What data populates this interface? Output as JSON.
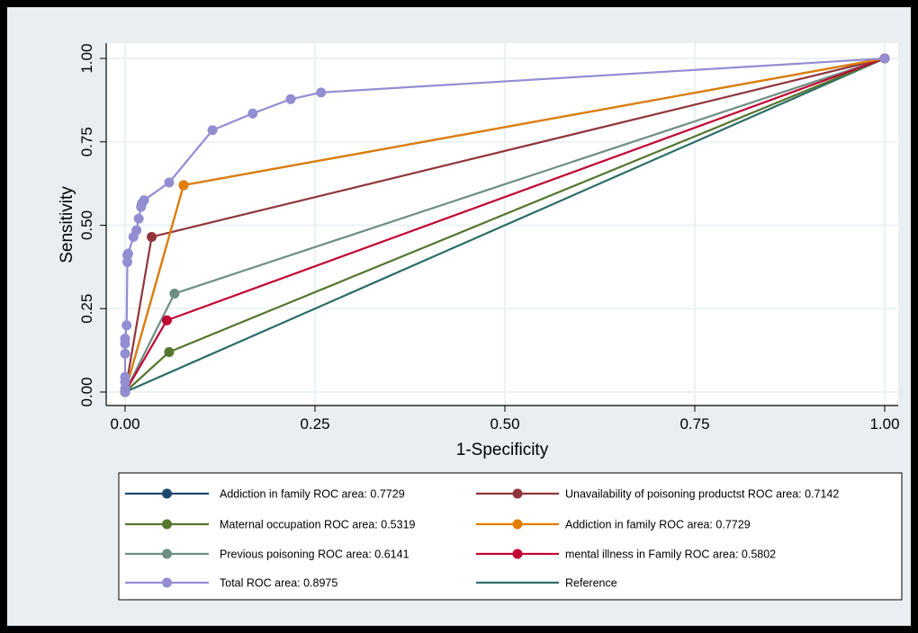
{
  "chart_data": {
    "type": "line",
    "xlabel": "1-Specificity",
    "ylabel": "Sensitivity",
    "xlim": [
      0,
      1
    ],
    "ylim": [
      0,
      1
    ],
    "x_ticks": [
      "0.00",
      "0.25",
      "0.50",
      "0.75",
      "1.00"
    ],
    "y_ticks": [
      "0.00",
      "0.25",
      "0.50",
      "0.75",
      "1.00"
    ],
    "grid": true,
    "legend_position": "bottom",
    "series": [
      {
        "name": "Addiction in family ROC area: 0.7729",
        "color": "#1a476f",
        "markers": true,
        "points": [
          [
            0,
            0
          ],
          [
            0.077,
            0.62
          ],
          [
            1,
            1
          ]
        ],
        "hidden_under_overlap": true
      },
      {
        "name": "Unavailability of poisoning productst ROC area: 0.7142",
        "color": "#90353b",
        "markers": true,
        "points": [
          [
            0,
            0
          ],
          [
            0.035,
            0.465
          ],
          [
            1,
            1
          ]
        ]
      },
      {
        "name": "Maternal occupation ROC area: 0.5319",
        "color": "#55752f",
        "markers": true,
        "points": [
          [
            0,
            0
          ],
          [
            0.058,
            0.12
          ],
          [
            1,
            1
          ]
        ]
      },
      {
        "name": "Addiction in family ROC area: 0.7729",
        "color": "#e37e00",
        "markers": true,
        "points": [
          [
            0,
            0
          ],
          [
            0.077,
            0.62
          ],
          [
            1,
            1
          ]
        ]
      },
      {
        "name": "Previous poisoning ROC area: 0.6141",
        "color": "#6e8e84",
        "markers": true,
        "points": [
          [
            0,
            0
          ],
          [
            0.065,
            0.295
          ],
          [
            1,
            1
          ]
        ]
      },
      {
        "name": "mental illness in Family ROC area: 0.5802",
        "color": "#c10534",
        "markers": true,
        "points": [
          [
            0,
            0
          ],
          [
            0.055,
            0.215
          ],
          [
            1,
            1
          ]
        ]
      },
      {
        "name": "Total ROC area: 0.8975",
        "color": "#938dd2",
        "markers": true,
        "points": [
          [
            0,
            0
          ],
          [
            0,
            0.01
          ],
          [
            0,
            0.03
          ],
          [
            0,
            0.045
          ],
          [
            0,
            0.115
          ],
          [
            0,
            0.145
          ],
          [
            0,
            0.16
          ],
          [
            0.002,
            0.2
          ],
          [
            0.003,
            0.39
          ],
          [
            0.003,
            0.41
          ],
          [
            0.004,
            0.415
          ],
          [
            0.011,
            0.465
          ],
          [
            0.015,
            0.485
          ],
          [
            0.018,
            0.52
          ],
          [
            0.021,
            0.555
          ],
          [
            0.022,
            0.565
          ],
          [
            0.025,
            0.575
          ],
          [
            0.058,
            0.628
          ],
          [
            0.115,
            0.785
          ],
          [
            0.168,
            0.835
          ],
          [
            0.218,
            0.878
          ],
          [
            0.258,
            0.898
          ],
          [
            1,
            1
          ]
        ]
      },
      {
        "name": "Reference",
        "color": "#2d6d66",
        "markers": false,
        "points": [
          [
            0,
            0
          ],
          [
            1,
            1
          ]
        ]
      }
    ]
  }
}
